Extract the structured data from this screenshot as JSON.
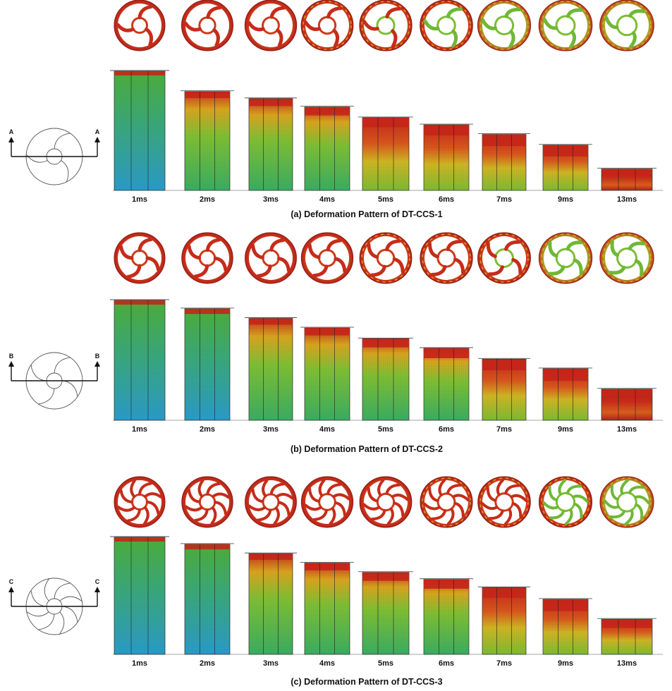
{
  "figure": {
    "panels": [
      {
        "id": "a",
        "caption": "(a) Deformation Pattern of DT-CCS-1",
        "section_label": "A",
        "wall_count": 3,
        "time_labels": [
          "1ms",
          "2ms",
          "3ms",
          "4ms",
          "5ms",
          "6ms",
          "7ms",
          "9ms",
          "13ms"
        ],
        "crush_fraction": [
          0.0,
          0.17,
          0.23,
          0.3,
          0.39,
          0.45,
          0.53,
          0.62,
          0.82
        ],
        "stress_level": [
          0.25,
          0.4,
          0.48,
          0.55,
          0.62,
          0.68,
          0.74,
          0.82,
          0.95
        ]
      },
      {
        "id": "b",
        "caption": "(b) Deformation Pattern of DT-CCS-2",
        "section_label": "B",
        "wall_count": 4,
        "time_labels": [
          "1ms",
          "2ms",
          "3ms",
          "4ms",
          "5ms",
          "6ms",
          "7ms",
          "9ms",
          "13ms"
        ],
        "crush_fraction": [
          0.0,
          0.07,
          0.15,
          0.23,
          0.32,
          0.4,
          0.49,
          0.57,
          0.74
        ],
        "stress_level": [
          0.2,
          0.3,
          0.38,
          0.45,
          0.52,
          0.58,
          0.64,
          0.72,
          0.85
        ]
      },
      {
        "id": "c",
        "caption": "(c) Deformation Pattern of DT-CCS-3",
        "section_label": "C",
        "wall_count": 8,
        "time_labels": [
          "1ms",
          "2ms",
          "3ms",
          "4ms",
          "5ms",
          "6ms",
          "7ms",
          "9ms",
          "13ms"
        ],
        "crush_fraction": [
          0.0,
          0.06,
          0.14,
          0.22,
          0.3,
          0.36,
          0.43,
          0.53,
          0.7
        ],
        "stress_level": [
          0.2,
          0.28,
          0.35,
          0.42,
          0.48,
          0.54,
          0.6,
          0.68,
          0.82
        ]
      }
    ],
    "colors": {
      "low_stress": "#1e9bd6",
      "mid_stress": "#5ab83a",
      "high_mid_stress": "#d9c31f",
      "high_stress": "#cc2a1a",
      "outline": "#333333"
    }
  }
}
